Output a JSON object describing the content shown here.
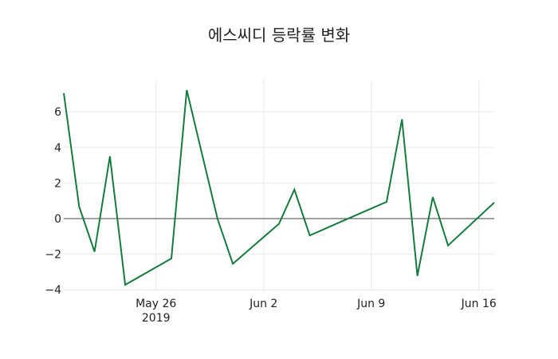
{
  "chart_data": {
    "type": "line",
    "title": "에스씨디 등락률 변화",
    "xlabel": "",
    "ylabel": "",
    "series": [
      {
        "name": "등락률",
        "color": "#177a3e",
        "x": [
          "2019-05-20",
          "2019-05-21",
          "2019-05-22",
          "2019-05-23",
          "2019-05-24",
          "2019-05-27",
          "2019-05-28",
          "2019-05-29",
          "2019-05-30",
          "2019-05-31",
          "2019-06-03",
          "2019-06-04",
          "2019-06-05",
          "2019-06-07",
          "2019-06-10",
          "2019-06-11",
          "2019-06-12",
          "2019-06-13",
          "2019-06-14",
          "2019-06-17"
        ],
        "values": [
          7.05,
          0.67,
          -1.86,
          3.5,
          -3.72,
          -2.24,
          7.22,
          3.6,
          -0.02,
          -2.54,
          -0.29,
          1.63,
          -0.95,
          -0.19,
          0.94,
          5.58,
          -3.22,
          1.21,
          -1.51,
          0.9
        ]
      }
    ],
    "x_ticks": [
      {
        "date": "2019-05-26",
        "label": "May 26",
        "sublabel": "2019"
      },
      {
        "date": "2019-06-02",
        "label": "Jun 2",
        "sublabel": ""
      },
      {
        "date": "2019-06-09",
        "label": "Jun 9",
        "sublabel": ""
      },
      {
        "date": "2019-06-16",
        "label": "Jun 16",
        "sublabel": ""
      }
    ],
    "y_ticks": [
      6,
      4,
      2,
      0,
      -2,
      -4
    ],
    "y_tick_labels": [
      "6",
      "4",
      "2",
      "0",
      "−2",
      "−4"
    ],
    "xlim": [
      "2019-05-20",
      "2019-06-17"
    ],
    "ylim": [
      -4.08,
      7.8
    ],
    "grid": true,
    "zero_line": true,
    "legend": "none"
  }
}
